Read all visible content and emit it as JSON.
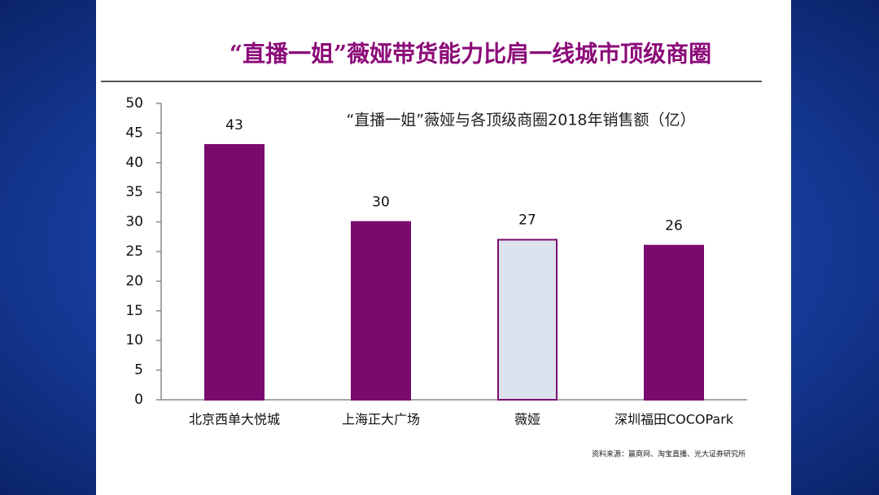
{
  "chart_data": {
    "type": "bar",
    "title": "“直播一姐”薇娅带货能力比肩一线城市顶级商圈",
    "subtitle": "“直播一姐”薇娅与各顶级商圈2018年销售额（亿）",
    "source": "资料来源：赢商网、淘宝直播、光大证券研究所",
    "categories": [
      "北京西单大悦城",
      "上海正大广场",
      "薇娅",
      "深圳福田COCOPark"
    ],
    "values": [
      43,
      30,
      27,
      26
    ],
    "colors": [
      "#7a0a6e",
      "#7a0a6e",
      "#dde3ee",
      "#7a0a6e"
    ],
    "edge_color": "#7a0a6e",
    "ylim": [
      0,
      50
    ],
    "yticks": [
      0,
      5,
      10,
      15,
      20,
      25,
      30,
      35,
      40,
      45,
      50
    ],
    "grid": false
  }
}
